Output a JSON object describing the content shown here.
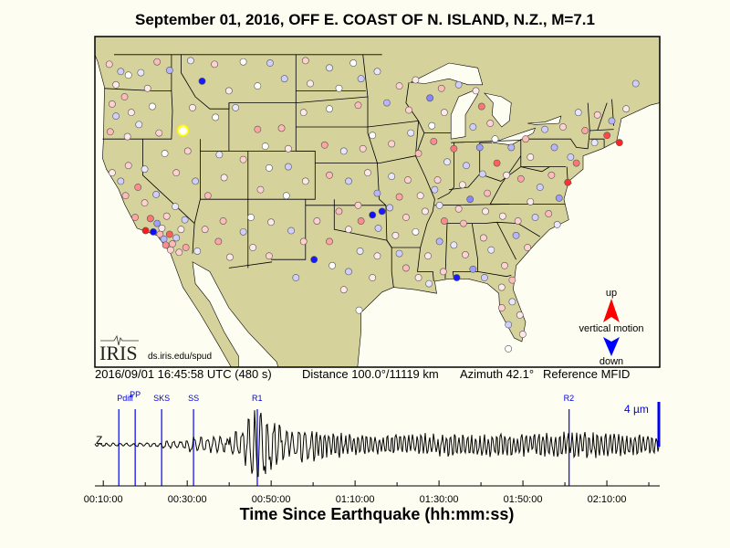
{
  "title": "September 01, 2016, OFF E. COAST OF N. ISLAND, N.Z., M=7.1",
  "info": {
    "time": "2016/09/01 16:45:58 UTC (480 s)",
    "distance": "Distance 100.0°/11119 km",
    "azimuth": "Azimuth  42.1°",
    "reference": "Reference MFID"
  },
  "logo": {
    "text": "IRIS",
    "url": "ds.iris.edu/spud"
  },
  "legend": {
    "up": "up",
    "label": "vertical motion",
    "down": "down",
    "up_color": "#ff0000",
    "down_color": "#0000ff"
  },
  "colors": {
    "land": "#d6d29c",
    "water": "#fdfdf1",
    "phase_line": "#0000ff",
    "reference_station": "#ffff00"
  },
  "reference_station": {
    "lon": -115.8,
    "lat": 42.7
  },
  "stations": [
    [
      -123.5,
      48.2,
      0.2
    ],
    [
      -122.3,
      47.6,
      -0.2
    ],
    [
      -122.8,
      46.5,
      0.1
    ],
    [
      -121.5,
      47.3,
      0
    ],
    [
      -120.2,
      47.5,
      -0.1
    ],
    [
      -118.5,
      48.4,
      0.3
    ],
    [
      -117.2,
      47.7,
      -0.3
    ],
    [
      -119.5,
      46.2,
      0.1
    ],
    [
      -121.9,
      45.5,
      0.3
    ],
    [
      -123.2,
      44.9,
      0.2
    ],
    [
      -122.8,
      43.9,
      -0.2
    ],
    [
      -121.2,
      44.2,
      0.1
    ],
    [
      -119.0,
      44.7,
      0
    ],
    [
      -123.4,
      42.6,
      0.3
    ],
    [
      -121.6,
      42.2,
      0.1
    ],
    [
      -120.4,
      43.2,
      -0.1
    ],
    [
      -118.3,
      42.5,
      0.2
    ],
    [
      -115.0,
      48.5,
      -0.1
    ],
    [
      -112.5,
      48.2,
      0.2
    ],
    [
      -109.5,
      48.4,
      0
    ],
    [
      -106.7,
      48.3,
      -0.2
    ],
    [
      -113.8,
      46.8,
      -0.95
    ],
    [
      -111.0,
      46.0,
      0.1
    ],
    [
      -108.0,
      46.4,
      0
    ],
    [
      -105.2,
      47.0,
      -0.2
    ],
    [
      -114.8,
      44.6,
      0.1
    ],
    [
      -112.4,
      43.8,
      0
    ],
    [
      -110.3,
      44.6,
      -0.1
    ],
    [
      -103.0,
      48.5,
      0.2
    ],
    [
      -100.5,
      47.9,
      -0.1
    ],
    [
      -98.0,
      48.3,
      0
    ],
    [
      -102.5,
      46.6,
      0.1
    ],
    [
      -99.5,
      46.2,
      0
    ],
    [
      -97.2,
      47.0,
      -0.2
    ],
    [
      -103.2,
      44.2,
      0.1
    ],
    [
      -100.5,
      44.5,
      0
    ],
    [
      -97.5,
      44.8,
      0.3
    ],
    [
      -95.5,
      47.6,
      -0.1
    ],
    [
      -93.2,
      46.4,
      0.2
    ],
    [
      -91.5,
      46.9,
      0.1
    ],
    [
      -94.5,
      45.0,
      -0.3
    ],
    [
      -92.2,
      44.4,
      0.2
    ],
    [
      -90.0,
      45.4,
      -0.5
    ],
    [
      -88.5,
      44.2,
      0.1
    ],
    [
      -89.8,
      43.1,
      0
    ],
    [
      -88.8,
      46.2,
      0.3
    ],
    [
      -87.0,
      46.5,
      -0.2
    ],
    [
      -85.2,
      46.0,
      0.1
    ],
    [
      -84.6,
      44.7,
      0.6
    ],
    [
      -85.5,
      43.0,
      -0.2
    ],
    [
      -83.7,
      43.3,
      0.2
    ],
    [
      -83.2,
      42.0,
      0
    ],
    [
      -108.0,
      42.8,
      0.4
    ],
    [
      -105.5,
      42.9,
      0.3
    ],
    [
      -107.2,
      41.4,
      0
    ],
    [
      -104.8,
      41.2,
      0.1
    ],
    [
      -115.3,
      41.0,
      0.2
    ],
    [
      -117.7,
      40.8,
      0
    ],
    [
      -119.8,
      39.5,
      -0.1
    ],
    [
      -116.5,
      39.2,
      0.2
    ],
    [
      -114.5,
      38.5,
      -0.2
    ],
    [
      -112.0,
      40.7,
      -0.1
    ],
    [
      -111.5,
      38.8,
      0.1
    ],
    [
      -109.5,
      40.3,
      0.2
    ],
    [
      -113.2,
      37.3,
      0.3
    ],
    [
      -106.8,
      39.6,
      0
    ],
    [
      -104.8,
      39.7,
      -0.2
    ],
    [
      -103.0,
      38.5,
      0.1
    ],
    [
      -107.7,
      37.8,
      0.2
    ],
    [
      -105.0,
      37.3,
      0
    ],
    [
      -101.0,
      41.5,
      0.4
    ],
    [
      -99.0,
      41.0,
      -0.1
    ],
    [
      -97.0,
      41.2,
      0.2
    ],
    [
      -96.0,
      42.3,
      0
    ],
    [
      -100.5,
      39.0,
      0.3
    ],
    [
      -98.5,
      38.5,
      -0.2
    ],
    [
      -96.5,
      39.2,
      0.1
    ],
    [
      -95.5,
      37.5,
      -0.3
    ],
    [
      -94.0,
      41.6,
      0.2
    ],
    [
      -92.0,
      42.5,
      -0.1
    ],
    [
      -91.2,
      40.8,
      0.3
    ],
    [
      -89.6,
      41.8,
      0.5
    ],
    [
      -88.2,
      40.1,
      -0.1
    ],
    [
      -89.2,
      38.6,
      0.2
    ],
    [
      -87.5,
      41.2,
      0.6
    ],
    [
      -86.2,
      39.8,
      -0.2
    ],
    [
      -86.6,
      38.2,
      0.1
    ],
    [
      -84.8,
      41.3,
      -0.4
    ],
    [
      -83.0,
      40.0,
      0.7
    ],
    [
      -81.5,
      41.3,
      -0.3
    ],
    [
      -82.0,
      39.0,
      0.1
    ],
    [
      -84.5,
      39.1,
      -0.2
    ],
    [
      -80.0,
      42.0,
      0.3
    ],
    [
      -78.0,
      42.8,
      -0.2
    ],
    [
      -76.1,
      43.0,
      0.2
    ],
    [
      -74.5,
      44.2,
      -0.1
    ],
    [
      -73.8,
      42.7,
      0.4
    ],
    [
      -77.0,
      41.3,
      -0.3
    ],
    [
      -79.5,
      40.5,
      0.1
    ],
    [
      -75.3,
      40.5,
      -0.2
    ],
    [
      -74.7,
      40.0,
      0.6
    ],
    [
      -72.8,
      41.7,
      -0.1
    ],
    [
      -71.5,
      42.3,
      0.8
    ],
    [
      -72.5,
      44.0,
      0.2
    ],
    [
      -71.0,
      43.5,
      -0.3
    ],
    [
      -69.5,
      44.5,
      0.1
    ],
    [
      -68.5,
      46.6,
      -0.2
    ],
    [
      -70.2,
      41.7,
      0.95
    ],
    [
      -80.5,
      38.7,
      0.4
    ],
    [
      -78.5,
      38.0,
      -0.2
    ],
    [
      -77.3,
      39.0,
      0.3
    ],
    [
      -75.6,
      38.4,
      0.9
    ],
    [
      -76.5,
      37.1,
      -0.4
    ],
    [
      -79.5,
      36.8,
      0.1
    ],
    [
      -77.6,
      35.8,
      0.3
    ],
    [
      -79.0,
      35.5,
      -0.2
    ],
    [
      -80.8,
      35.2,
      0.2
    ],
    [
      -76.7,
      34.9,
      -0.1
    ],
    [
      -82.4,
      35.6,
      0.1
    ],
    [
      -81.0,
      34.0,
      -0.3
    ],
    [
      -79.8,
      33.0,
      0.2
    ],
    [
      -84.0,
      37.5,
      0.3
    ],
    [
      -85.8,
      37.0,
      -0.5
    ],
    [
      -87.0,
      36.2,
      0.2
    ],
    [
      -89.0,
      36.5,
      -0.1
    ],
    [
      -84.2,
      36.0,
      0.1
    ],
    [
      -86.5,
      35.0,
      0.3
    ],
    [
      -88.5,
      35.2,
      0.5
    ],
    [
      -90.5,
      36.0,
      0.1
    ],
    [
      -89.5,
      37.8,
      -0.2
    ],
    [
      -92.3,
      38.6,
      0.2
    ],
    [
      -94.0,
      38.9,
      -0.1
    ],
    [
      -91.0,
      37.3,
      0.1
    ],
    [
      -93.2,
      37.2,
      0.4
    ],
    [
      -92.5,
      35.5,
      0.2
    ],
    [
      -94.2,
      36.3,
      -0.2
    ],
    [
      -91.5,
      34.3,
      0
    ],
    [
      -93.6,
      34.0,
      0.1
    ],
    [
      -97.5,
      36.5,
      0.2
    ],
    [
      -96.0,
      35.7,
      -1
    ],
    [
      -95.0,
      36.0,
      -0.95
    ],
    [
      -97.2,
      35.2,
      0.5
    ],
    [
      -98.5,
      34.5,
      0.1
    ],
    [
      -95.4,
      34.6,
      -0.2
    ],
    [
      -99.5,
      36.0,
      0.3
    ],
    [
      -101.8,
      35.2,
      0.2
    ],
    [
      -100.5,
      33.5,
      0.4
    ],
    [
      -97.3,
      32.7,
      -0.1
    ],
    [
      -95.5,
      32.3,
      0.1
    ],
    [
      -98.5,
      31.0,
      -0.2
    ],
    [
      -96.0,
      30.5,
      0.1
    ],
    [
      -100.2,
      31.5,
      0
    ],
    [
      -102.1,
      32.0,
      -0.95
    ],
    [
      -99.0,
      29.5,
      0.1
    ],
    [
      -97.4,
      27.8,
      0
    ],
    [
      -104.0,
      30.5,
      -0.2
    ],
    [
      -103.2,
      33.5,
      0.2
    ],
    [
      -106.6,
      35.1,
      0.1
    ],
    [
      -104.5,
      34.4,
      -0.2
    ],
    [
      -108.7,
      35.5,
      0
    ],
    [
      -106.8,
      32.3,
      0.2
    ],
    [
      -108.5,
      33.0,
      0.1
    ],
    [
      -111.6,
      35.2,
      0.3
    ],
    [
      -109.5,
      34.3,
      -0.2
    ],
    [
      -112.1,
      33.5,
      0.4
    ],
    [
      -110.9,
      32.2,
      0.1
    ],
    [
      -113.5,
      34.5,
      0.2
    ],
    [
      -114.3,
      32.7,
      -0.1
    ],
    [
      -90.2,
      32.3,
      0.1
    ],
    [
      -89.0,
      33.5,
      -0.3
    ],
    [
      -88.6,
      31.0,
      0.2
    ],
    [
      -87.5,
      33.2,
      -0.1
    ],
    [
      -86.3,
      32.4,
      0.2
    ],
    [
      -85.5,
      31.2,
      -0.4
    ],
    [
      -91.2,
      30.5,
      0.1
    ],
    [
      -92.5,
      31.3,
      0.3
    ],
    [
      -93.2,
      32.5,
      -0.2
    ],
    [
      -90.1,
      30.0,
      -0.1
    ],
    [
      -87.2,
      30.5,
      -0.95
    ],
    [
      -84.4,
      33.8,
      0.2
    ],
    [
      -83.6,
      32.8,
      -0.1
    ],
    [
      -82.2,
      31.5,
      0.2
    ],
    [
      -84.3,
      30.5,
      -0.2
    ],
    [
      -82.5,
      29.7,
      0.1
    ],
    [
      -81.4,
      30.3,
      0.3
    ],
    [
      -81.4,
      28.5,
      -0.1
    ],
    [
      -82.5,
      28.0,
      0.2
    ],
    [
      -80.6,
      27.4,
      0.1
    ],
    [
      -81.8,
      26.6,
      -0.2
    ],
    [
      -80.3,
      25.8,
      0.1
    ],
    [
      -81.8,
      24.6,
      0
    ],
    [
      -119.8,
      36.7,
      0.2
    ],
    [
      -118.6,
      37.4,
      -0.2
    ],
    [
      -120.8,
      35.5,
      0.4
    ],
    [
      -121.8,
      37.3,
      0.3
    ],
    [
      -122.3,
      38.5,
      -0.2
    ],
    [
      -121.5,
      39.8,
      0.2
    ],
    [
      -123.2,
      39.2,
      0.1
    ],
    [
      -120.5,
      38.0,
      0.5
    ],
    [
      -119.2,
      35.4,
      0.6
    ],
    [
      -118.2,
      34.1,
      0.3
    ],
    [
      -117.8,
      33.7,
      -0.3
    ],
    [
      -117.2,
      34.1,
      0.7
    ],
    [
      -116.5,
      33.8,
      -0.2
    ],
    [
      -117.1,
      32.8,
      0.2
    ],
    [
      -116.0,
      34.5,
      0.1
    ],
    [
      -115.5,
      33.0,
      0.4
    ],
    [
      -118.5,
      35.0,
      -0.4
    ],
    [
      -119.7,
      34.4,
      1
    ],
    [
      -117.5,
      35.6,
      0.2
    ],
    [
      -116.6,
      36.4,
      -0.1
    ],
    [
      -118.0,
      34.6,
      0.1
    ],
    [
      -118.9,
      34.3,
      -1
    ],
    [
      -116.9,
      33.3,
      0.3
    ],
    [
      -115.6,
      35.3,
      -0.2
    ],
    [
      -117.6,
      33.2,
      0.5
    ],
    [
      -116.2,
      32.6,
      0.2
    ]
  ],
  "seismogram": {
    "component": "Z",
    "scale_label": "4 µm",
    "phases": [
      {
        "name": "Pdiff",
        "minutes": 13.7
      },
      {
        "name": "PP",
        "minutes": 17.6
      },
      {
        "name": "SKS",
        "minutes": 23.9
      },
      {
        "name": "SS",
        "minutes": 31.5
      },
      {
        "name": "R1",
        "minutes": 46.7
      },
      {
        "name": "R2",
        "minutes": 121.0
      }
    ],
    "time_range_minutes": [
      8,
      142.6
    ],
    "tick_labels": [
      "00:10:00",
      "00:30:00",
      "00:50:00",
      "01:10:00",
      "01:30:00",
      "01:50:00",
      "02:10:00"
    ],
    "xlabel": "Time Since Earthquake (hh:mm:ss)"
  }
}
